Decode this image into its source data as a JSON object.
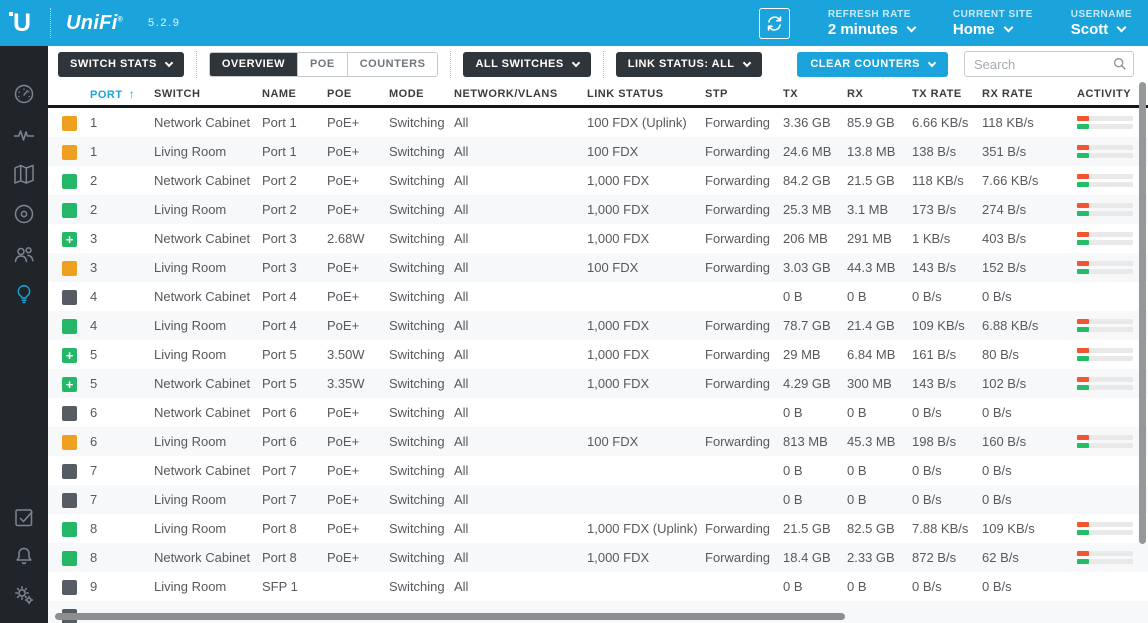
{
  "colors": {
    "accent": "#1BA3DC",
    "dark_button": "#2E353B",
    "sidebar_bg": "#20252A",
    "header_underline": "#16181A",
    "port_100mbps": "#F0A020",
    "port_1gbps": "#24B768",
    "port_down": "#555C64",
    "activity_tx": "#F3552F",
    "activity_rx": "#22BD66"
  },
  "header": {
    "logo": "U",
    "brand": "UniFi",
    "version": "5.2.9",
    "refresh_rate_label": "REFRESH RATE",
    "refresh_rate_value": "2 minutes",
    "current_site_label": "CURRENT SITE",
    "current_site_value": "Home",
    "username_label": "USERNAME",
    "username_value": "Scott"
  },
  "sidebar": {
    "items": [
      "dashboard",
      "statistics",
      "map",
      "devices",
      "clients",
      "insights",
      "events",
      "alerts",
      "settings"
    ],
    "active_item": "insights"
  },
  "toolbar": {
    "switch_stats_label": "SWITCH STATS",
    "tabs": [
      {
        "label": "OVERVIEW",
        "active": true
      },
      {
        "label": "POE",
        "active": false
      },
      {
        "label": "COUNTERS",
        "active": false
      }
    ],
    "all_switches_label": "ALL SWITCHES",
    "link_status_label": "LINK STATUS: ALL",
    "clear_counters_label": "CLEAR COUNTERS",
    "search_placeholder": "Search"
  },
  "table": {
    "columns": [
      "PORT",
      "SWITCH",
      "NAME",
      "POE",
      "MODE",
      "NETWORK/VLANS",
      "LINK STATUS",
      "STP",
      "TX",
      "RX",
      "TX RATE",
      "RX RATE",
      "ACTIVITY"
    ],
    "sort": {
      "column": "PORT",
      "direction": "asc",
      "icon": "↑"
    },
    "poe_plus_icon": "+",
    "rows": [
      {
        "square": "orange",
        "activity": true,
        "cells": [
          "1",
          "Network Cabinet",
          "Port 1",
          "PoE+",
          "Switching",
          "All",
          "100 FDX (Uplink)",
          "Forwarding",
          "3.36 GB",
          "85.9 GB",
          "6.66 KB/s",
          "118 KB/s"
        ]
      },
      {
        "square": "orange",
        "activity": true,
        "cells": [
          "1",
          "Living Room",
          "Port 1",
          "PoE+",
          "Switching",
          "All",
          "100 FDX",
          "Forwarding",
          "24.6 MB",
          "13.8 MB",
          "138 B/s",
          "351 B/s"
        ]
      },
      {
        "square": "green",
        "activity": true,
        "cells": [
          "2",
          "Network Cabinet",
          "Port 2",
          "PoE+",
          "Switching",
          "All",
          "1,000 FDX",
          "Forwarding",
          "84.2 GB",
          "21.5 GB",
          "118 KB/s",
          "7.66 KB/s"
        ]
      },
      {
        "square": "green",
        "activity": true,
        "cells": [
          "2",
          "Living Room",
          "Port 2",
          "PoE+",
          "Switching",
          "All",
          "1,000 FDX",
          "Forwarding",
          "25.3 MB",
          "3.1 MB",
          "173 B/s",
          "274 B/s"
        ]
      },
      {
        "square": "green_poe",
        "activity": true,
        "cells": [
          "3",
          "Network Cabinet",
          "Port 3",
          "2.68W",
          "Switching",
          "All",
          "1,000 FDX",
          "Forwarding",
          "206 MB",
          "291 MB",
          "1 KB/s",
          "403 B/s"
        ]
      },
      {
        "square": "orange",
        "activity": true,
        "cells": [
          "3",
          "Living Room",
          "Port 3",
          "PoE+",
          "Switching",
          "All",
          "100 FDX",
          "Forwarding",
          "3.03 GB",
          "44.3 MB",
          "143 B/s",
          "152 B/s"
        ]
      },
      {
        "square": "gray",
        "activity": false,
        "cells": [
          "4",
          "Network Cabinet",
          "Port 4",
          "PoE+",
          "Switching",
          "All",
          "",
          "",
          "0 B",
          "0 B",
          "0 B/s",
          "0 B/s"
        ]
      },
      {
        "square": "green",
        "activity": true,
        "cells": [
          "4",
          "Living Room",
          "Port 4",
          "PoE+",
          "Switching",
          "All",
          "1,000 FDX",
          "Forwarding",
          "78.7 GB",
          "21.4 GB",
          "109 KB/s",
          "6.88 KB/s"
        ]
      },
      {
        "square": "green_poe",
        "activity": true,
        "cells": [
          "5",
          "Living Room",
          "Port 5",
          "3.50W",
          "Switching",
          "All",
          "1,000 FDX",
          "Forwarding",
          "29 MB",
          "6.84 MB",
          "161 B/s",
          "80 B/s"
        ]
      },
      {
        "square": "green_poe",
        "activity": true,
        "cells": [
          "5",
          "Network Cabinet",
          "Port 5",
          "3.35W",
          "Switching",
          "All",
          "1,000 FDX",
          "Forwarding",
          "4.29 GB",
          "300 MB",
          "143 B/s",
          "102 B/s"
        ]
      },
      {
        "square": "gray",
        "activity": false,
        "cells": [
          "6",
          "Network Cabinet",
          "Port 6",
          "PoE+",
          "Switching",
          "All",
          "",
          "",
          "0 B",
          "0 B",
          "0 B/s",
          "0 B/s"
        ]
      },
      {
        "square": "orange",
        "activity": true,
        "cells": [
          "6",
          "Living Room",
          "Port 6",
          "PoE+",
          "Switching",
          "All",
          "100 FDX",
          "Forwarding",
          "813 MB",
          "45.3 MB",
          "198 B/s",
          "160 B/s"
        ]
      },
      {
        "square": "gray",
        "activity": false,
        "cells": [
          "7",
          "Network Cabinet",
          "Port 7",
          "PoE+",
          "Switching",
          "All",
          "",
          "",
          "0 B",
          "0 B",
          "0 B/s",
          "0 B/s"
        ]
      },
      {
        "square": "gray",
        "activity": false,
        "cells": [
          "7",
          "Living Room",
          "Port 7",
          "PoE+",
          "Switching",
          "All",
          "",
          "",
          "0 B",
          "0 B",
          "0 B/s",
          "0 B/s"
        ]
      },
      {
        "square": "green",
        "activity": true,
        "cells": [
          "8",
          "Living Room",
          "Port 8",
          "PoE+",
          "Switching",
          "All",
          "1,000 FDX (Uplink)",
          "Forwarding",
          "21.5 GB",
          "82.5 GB",
          "7.88 KB/s",
          "109 KB/s"
        ]
      },
      {
        "square": "green",
        "activity": true,
        "cells": [
          "8",
          "Network Cabinet",
          "Port 8",
          "PoE+",
          "Switching",
          "All",
          "1,000 FDX",
          "Forwarding",
          "18.4 GB",
          "2.33 GB",
          "872 B/s",
          "62 B/s"
        ]
      },
      {
        "square": "gray",
        "activity": false,
        "cells": [
          "9",
          "Living Room",
          "SFP 1",
          "",
          "Switching",
          "All",
          "",
          "",
          "0 B",
          "0 B",
          "0 B/s",
          "0 B/s"
        ]
      },
      {
        "square": "gray",
        "activity": false,
        "cells": [
          "",
          "",
          "",
          "",
          "",
          "",
          "",
          "",
          "",
          "",
          "",
          ""
        ]
      }
    ]
  }
}
